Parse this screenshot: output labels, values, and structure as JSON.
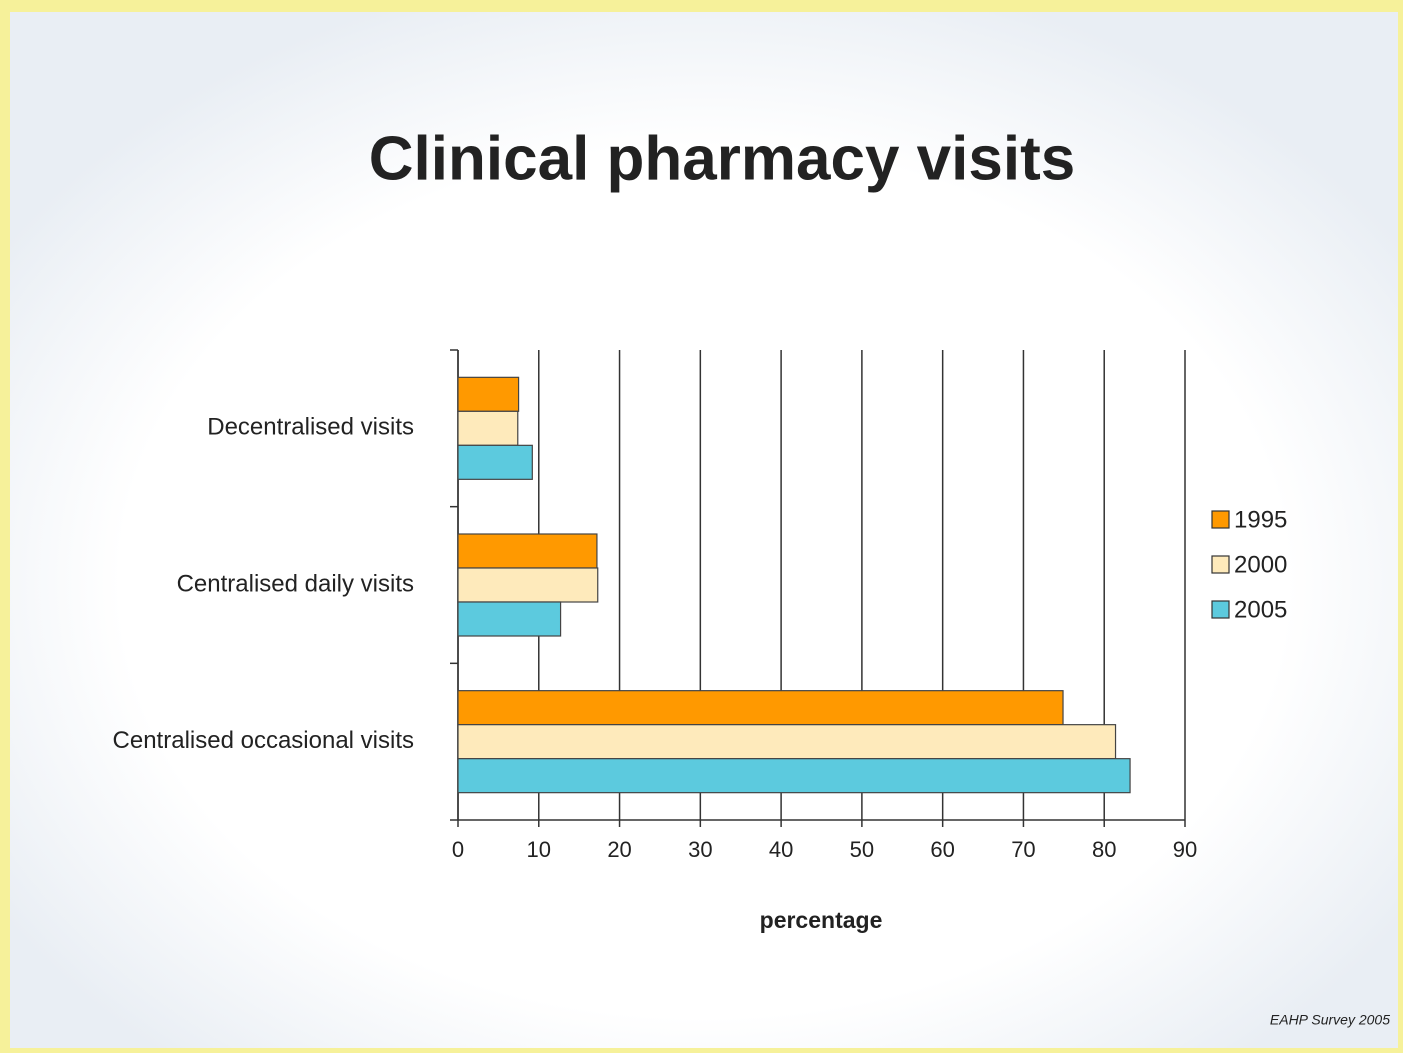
{
  "chart_data": {
    "type": "bar",
    "orientation": "horizontal",
    "title": "Clinical pharmacy visits",
    "x_label": "percentage",
    "source": "EAHP Survey 2005",
    "categories": [
      "Decentralised visits",
      "Centralised daily visits",
      "Centralised occasional visits"
    ],
    "series": [
      {
        "name": "1995",
        "color": "#ff9900",
        "values": [
          7.5,
          17.2,
          74.9
        ]
      },
      {
        "name": "2000",
        "color": "#feeabb",
        "values": [
          7.4,
          17.3,
          81.4
        ]
      },
      {
        "name": "2005",
        "color": "#5ccade",
        "values": [
          9.2,
          12.7,
          83.2
        ]
      }
    ],
    "xlim": [
      0,
      90
    ],
    "xticks": [
      0,
      10,
      20,
      30,
      40,
      50,
      60,
      70,
      80,
      90
    ],
    "grid": true,
    "legend": "right"
  }
}
